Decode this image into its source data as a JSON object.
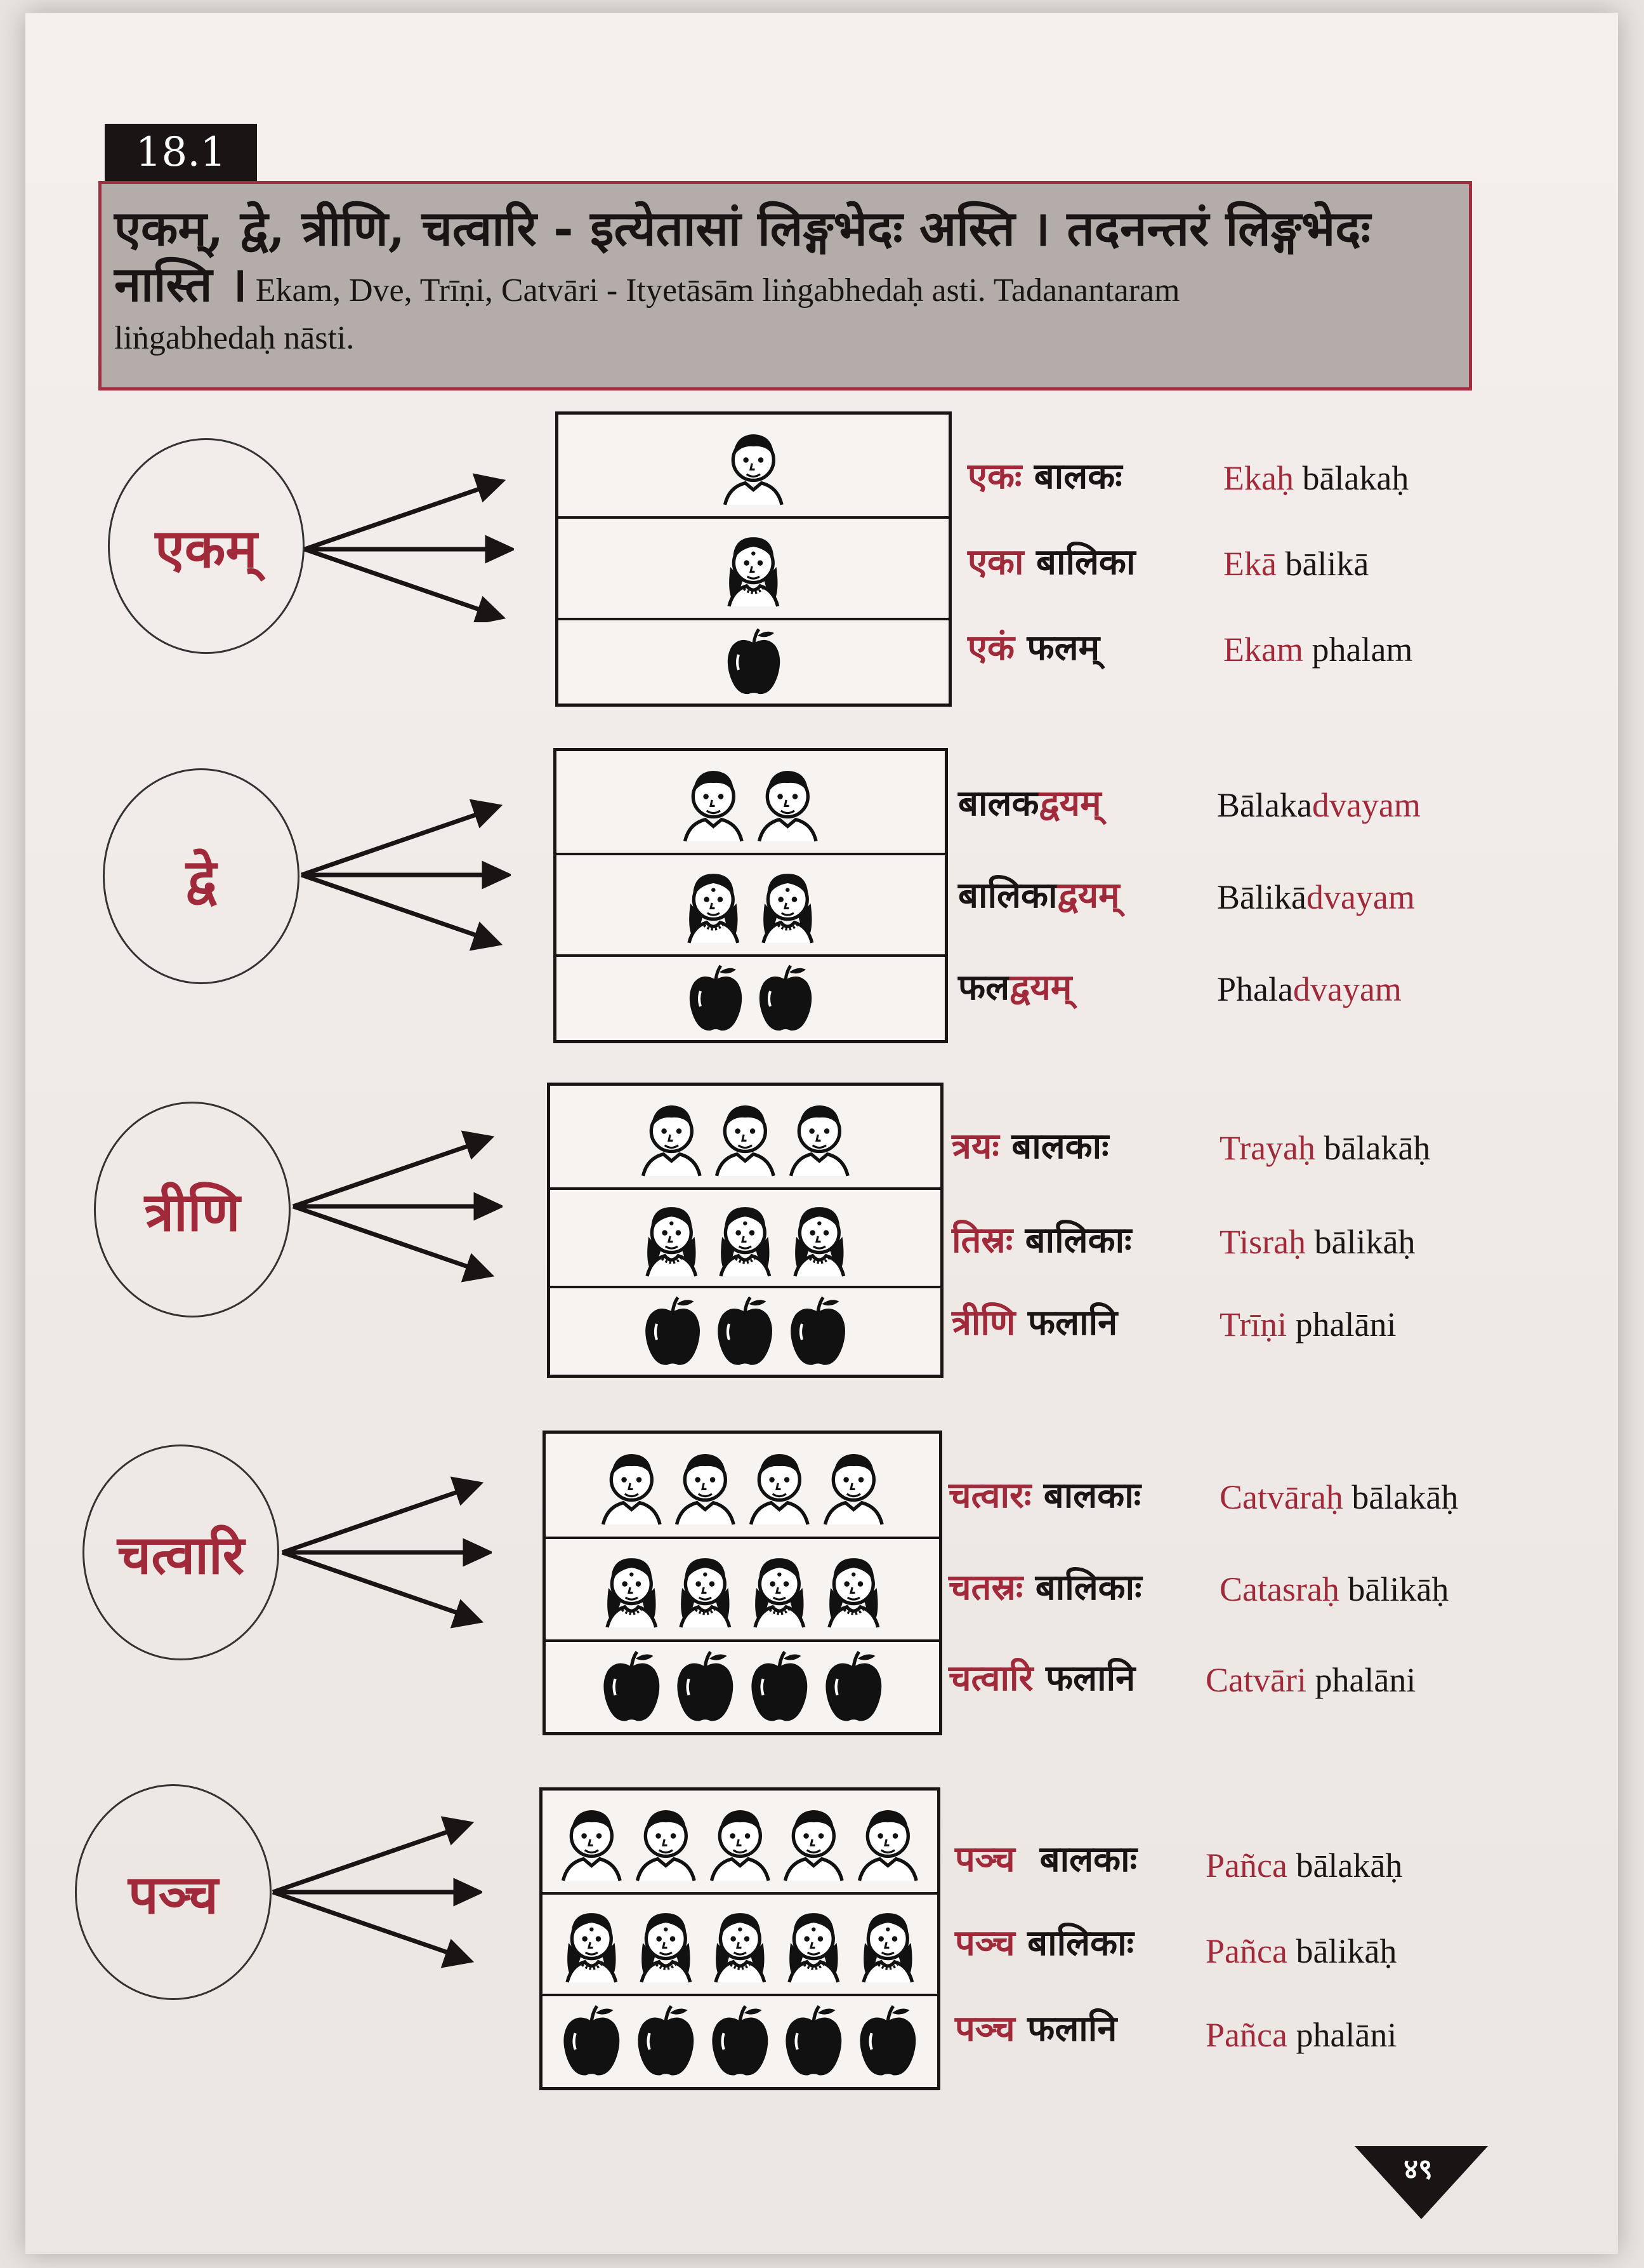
{
  "section": {
    "number": "18.1"
  },
  "header": {
    "devanagari_line1": "एकम्, द्वे, त्रीणि, चत्वारि - इत्येतासां लिङ्गभेदः अस्ति । तदनन्तरं लिङ्गभेदः",
    "devanagari_line2": "नास्ति ।",
    "roman_line2": "Ekam, Dve, Trīṇi, Catvāri - Ityetāsām  liṅgabhedaḥ asti. Tadanantaram",
    "roman_line3": "liṅgabhedaḥ nāsti."
  },
  "groups": [
    {
      "numeral": "एकम्",
      "rows": [
        {
          "dev_red": "एकः",
          "dev_dark": "बालकः",
          "rom_red": "Ekaḥ",
          "rom_dark": "bālakaḥ",
          "icon": "boy-icon",
          "count": 1
        },
        {
          "dev_red": "एका",
          "dev_dark": "बालिका",
          "rom_red": "Ekā",
          "rom_dark": "bālikā",
          "icon": "girl-icon",
          "count": 1
        },
        {
          "dev_red": "एकं",
          "dev_dark": "फलम्",
          "rom_red": "Ekam",
          "rom_dark": "phalam",
          "icon": "apple-icon",
          "count": 1
        }
      ]
    },
    {
      "numeral": "द्वे",
      "rows": [
        {
          "dev_dark": "बालक",
          "dev_red": "द्वयम्",
          "rom_dark": "Bālaka",
          "rom_red": "dvayam",
          "icon": "boy-icon",
          "count": 2
        },
        {
          "dev_dark": "बालिका",
          "dev_red": "द्वयम्",
          "rom_dark": "Bālikā",
          "rom_red": "dvayam",
          "icon": "girl-icon",
          "count": 2
        },
        {
          "dev_dark": "फल",
          "dev_red": "द्वयम्",
          "rom_dark": "Phala",
          "rom_red": "dvayam",
          "icon": "apple-icon",
          "count": 2
        }
      ]
    },
    {
      "numeral": "त्रीणि",
      "rows": [
        {
          "dev_red": "त्रयः",
          "dev_dark": "बालकाः",
          "rom_red": "Trayaḥ",
          "rom_dark": "bālakāḥ",
          "icon": "boy-icon",
          "count": 3
        },
        {
          "dev_red": "तिस्रः",
          "dev_dark": "बालिकाः",
          "rom_red": "Tisraḥ",
          "rom_dark": "bālikāḥ",
          "icon": "girl-icon",
          "count": 3
        },
        {
          "dev_red": "त्रीणि",
          "dev_dark": "फलानि",
          "rom_red": "Trīṇi",
          "rom_dark": "phalāni",
          "icon": "apple-icon",
          "count": 3
        }
      ]
    },
    {
      "numeral": "चत्वारि",
      "rows": [
        {
          "dev_red": "चत्वारः",
          "dev_dark": "बालकाः",
          "rom_red": "Catvāraḥ",
          "rom_dark": "bālakāḥ",
          "icon": "boy-icon",
          "count": 4
        },
        {
          "dev_red": "चतस्रः",
          "dev_dark": "बालिकाः",
          "rom_red": "Catasraḥ",
          "rom_dark": "bālikāḥ",
          "icon": "girl-icon",
          "count": 4
        },
        {
          "dev_red": "चत्वारि",
          "dev_dark": "फलानि",
          "rom_red": "Catvāri",
          "rom_dark": "phalāni",
          "icon": "apple-icon",
          "count": 4
        }
      ]
    },
    {
      "numeral": "पञ्च",
      "rows": [
        {
          "dev_red": "पञ्च",
          "dev_dark": "बालकाः",
          "rom_red": "Pañca",
          "rom_dark": "bālakāḥ",
          "icon": "boy-icon",
          "count": 5
        },
        {
          "dev_red": "पञ्च",
          "dev_dark": "बालिकाः",
          "rom_red": "Pañca",
          "rom_dark": "bālikāḥ",
          "icon": "girl-icon",
          "count": 5
        },
        {
          "dev_red": "पञ्च",
          "dev_dark": "फलानि",
          "rom_red": "Pañca",
          "rom_dark": "phalāni",
          "icon": "apple-icon",
          "count": 5
        }
      ]
    }
  ],
  "page_number": "४९",
  "colors": {
    "accent_red": "#a02a3a",
    "header_bg": "#b3aca8",
    "ink": "#1a1414"
  }
}
